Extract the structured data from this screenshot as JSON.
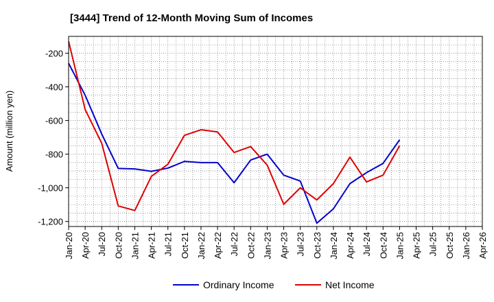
{
  "chart_data": {
    "type": "line",
    "title": "[3444]  Trend of 12-Month Moving Sum of Incomes",
    "xlabel": "",
    "ylabel": "Amount (million yen)",
    "ylim": [
      -1230,
      -100
    ],
    "grid": true,
    "legend": "bottom-center",
    "x_ticks": [
      "Jan-20",
      "Apr-20",
      "Jul-20",
      "Oct-20",
      "Jan-21",
      "Apr-21",
      "Jul-21",
      "Oct-21",
      "Jan-22",
      "Apr-22",
      "Jul-22",
      "Oct-22",
      "Jan-23",
      "Apr-23",
      "Jul-23",
      "Oct-23",
      "Jan-24",
      "Apr-24",
      "Jul-24",
      "Oct-24",
      "Jan-25",
      "Apr-25",
      "Jul-25",
      "Oct-25",
      "Jan-26",
      "Apr-26"
    ],
    "y_ticks": [
      -200,
      -400,
      -600,
      -800,
      -1000,
      -1200
    ],
    "y_tick_labels": [
      "-200",
      "-400",
      "-600",
      "-800",
      "-1,000",
      "-1,200"
    ],
    "series": [
      {
        "name": "Ordinary Income",
        "color": "#0000cc",
        "values": [
          -260,
          -450,
          -680,
          -885,
          -888,
          -902,
          -883,
          -843,
          -850,
          -850,
          -970,
          -835,
          -800,
          -925,
          -960,
          -1210,
          -1125,
          -975,
          -910,
          -855,
          -715
        ]
      },
      {
        "name": "Net Income",
        "color": "#dd0000",
        "values": [
          -130,
          -535,
          -735,
          -1108,
          -1135,
          -932,
          -860,
          -688,
          -655,
          -668,
          -790,
          -755,
          -865,
          -1098,
          -1000,
          -1072,
          -975,
          -818,
          -965,
          -925,
          -750
        ]
      }
    ]
  }
}
